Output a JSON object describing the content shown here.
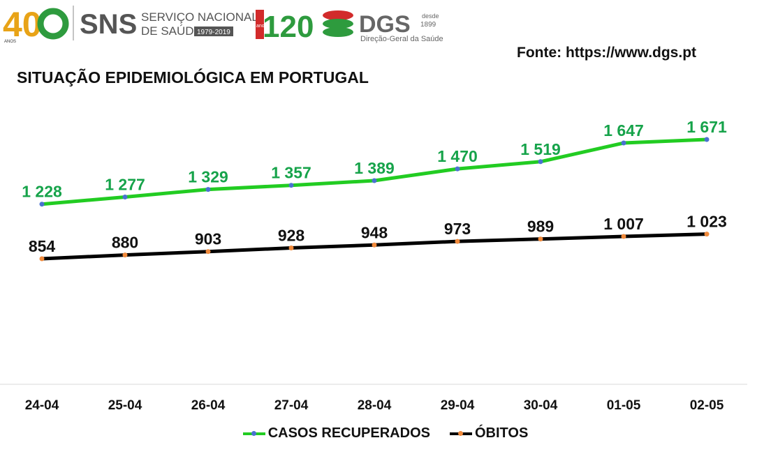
{
  "logos": {
    "sns_40": "40",
    "sns_40_sub": "ANOS",
    "sns": "SNS",
    "sns_line1": "SERVIÇO NACIONAL",
    "sns_line2": "DE SAÚDE",
    "sns_years": "1979-2019",
    "dgs_120": "120",
    "dgs_120_sub": "anos",
    "dgs": "DGS",
    "dgs_desde": "desde",
    "dgs_year": "1899",
    "dgs_sub": "Direção-Geral da Saúde"
  },
  "source": "Fonte: https://www.dgs.pt",
  "colors": {
    "recovered": "#22cc22",
    "recovered_label": "#16a34a",
    "recovered_marker": "#4a72d0",
    "deaths": "#000000",
    "deaths_marker": "#f08a3c"
  },
  "chart_data": {
    "type": "line",
    "title": "SITUAÇÃO EPIDEMIOLÓGICA EM PORTUGAL",
    "categories": [
      "24-04",
      "25-04",
      "26-04",
      "27-04",
      "28-04",
      "29-04",
      "30-04",
      "01-05",
      "02-05"
    ],
    "series": [
      {
        "name": "CASOS RECUPERADOS",
        "values": [
          1228,
          1277,
          1329,
          1357,
          1389,
          1470,
          1519,
          1647,
          1671
        ],
        "labels": [
          "1 228",
          "1 277",
          "1 329",
          "1 357",
          "1 389",
          "1 470",
          "1 519",
          "1 647",
          "1 671"
        ]
      },
      {
        "name": "ÓBITOS",
        "values": [
          854,
          880,
          903,
          928,
          948,
          973,
          989,
          1007,
          1023
        ],
        "labels": [
          "854",
          "880",
          "903",
          "928",
          "948",
          "973",
          "989",
          "1 007",
          "1 023"
        ]
      }
    ],
    "legend": "bottom",
    "grid": false
  }
}
